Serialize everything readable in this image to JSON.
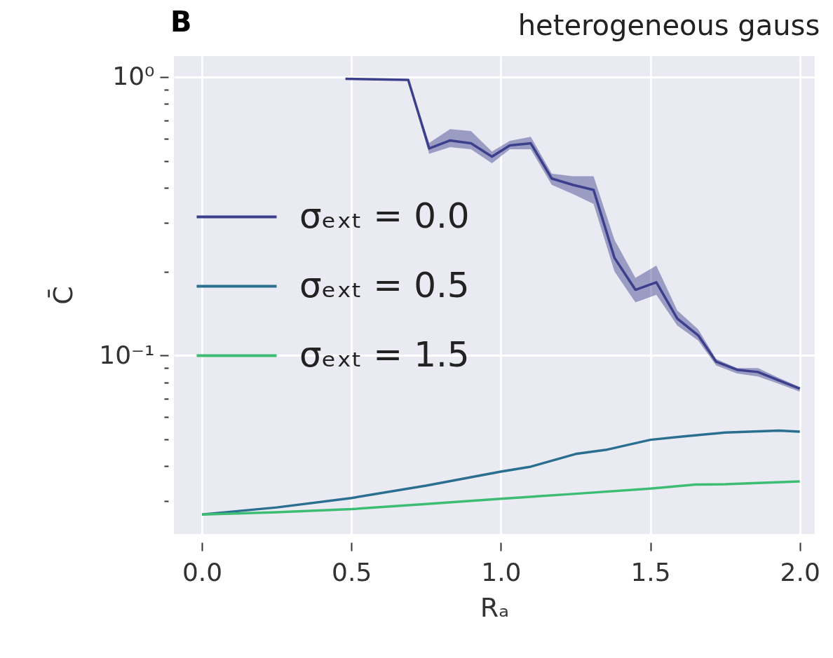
{
  "chart_data": {
    "type": "line",
    "title": "heterogeneous gauss",
    "annotations": [
      "B"
    ],
    "xlabel": "Rₐ",
    "ylabel": "C̄",
    "log": true,
    "grid": true,
    "legend": "left",
    "xlim": [
      -0.094,
      2.05
    ],
    "ylim": [
      0.0228,
      1.19
    ],
    "xticks": [
      {
        "value": 0,
        "label": "0.0"
      },
      {
        "value": 0.5,
        "label": "0.5"
      },
      {
        "value": 1,
        "label": "1.0"
      },
      {
        "value": 1.5,
        "label": "1.5"
      },
      {
        "value": 2,
        "label": "2.0"
      }
    ],
    "yticks": [
      {
        "value": 0.03,
        "label": null
      },
      {
        "value": 0.04,
        "label": null
      },
      {
        "value": 0.05,
        "label": null
      },
      {
        "value": 0.06,
        "label": null
      },
      {
        "value": 0.07,
        "label": null
      },
      {
        "value": 0.08,
        "label": null
      },
      {
        "value": 0.09,
        "label": null
      },
      {
        "value": 0.1,
        "label": "10⁻¹"
      },
      {
        "value": 0.2,
        "label": null
      },
      {
        "value": 0.3,
        "label": null
      },
      {
        "value": 0.4,
        "label": null
      },
      {
        "value": 0.5,
        "label": null
      },
      {
        "value": 0.6,
        "label": null
      },
      {
        "value": 0.7,
        "label": null
      },
      {
        "value": 0.8,
        "label": null
      },
      {
        "value": 0.9,
        "label": null
      },
      {
        "value": 1,
        "label": "10⁰"
      }
    ],
    "series": [
      {
        "name": "σₑₓₜ = 0.0",
        "color": "#3b3f8c",
        "x": [
          0.48,
          0.69,
          0.76,
          0.83,
          0.9,
          0.97,
          1.03,
          1.1,
          1.17,
          1.24,
          1.31,
          1.38,
          1.45,
          1.52,
          1.59,
          1.66,
          1.72,
          1.79,
          1.86,
          1.93,
          2.0
        ],
        "values": [
          0.985,
          0.977,
          0.554,
          0.592,
          0.578,
          0.518,
          0.568,
          0.578,
          0.432,
          0.41,
          0.393,
          0.224,
          0.172,
          0.183,
          0.1355,
          0.118,
          0.0949,
          0.0887,
          0.0871,
          0.0813,
          0.0759
        ],
        "lower": [
          0.98,
          0.97,
          0.53,
          0.56,
          0.55,
          0.49,
          0.55,
          0.55,
          0.41,
          0.38,
          0.35,
          0.2,
          0.155,
          0.165,
          0.128,
          0.113,
          0.092,
          0.086,
          0.084,
          0.079,
          0.074
        ],
        "upper": [
          0.99,
          0.98,
          0.58,
          0.65,
          0.64,
          0.54,
          0.59,
          0.61,
          0.45,
          0.44,
          0.44,
          0.26,
          0.19,
          0.21,
          0.145,
          0.124,
          0.097,
          0.09,
          0.09,
          0.083,
          0.077
        ]
      },
      {
        "name": "σₑₓₜ = 0.5",
        "color": "#2a6f8f",
        "x": [
          0,
          0.25,
          0.5,
          0.75,
          1.0,
          1.1,
          1.25,
          1.35,
          1.5,
          1.6,
          1.75,
          1.93,
          2.0
        ],
        "values": [
          0.0268,
          0.0284,
          0.0307,
          0.034,
          0.0382,
          0.0398,
          0.0442,
          0.0457,
          0.0497,
          0.051,
          0.0528,
          0.0536,
          0.0532
        ]
      },
      {
        "name": "σₑₓₜ = 1.5",
        "color": "#3dbd73",
        "x": [
          0,
          0.25,
          0.5,
          0.75,
          1.0,
          1.25,
          1.5,
          1.65,
          1.75,
          2.0
        ],
        "values": [
          0.0268,
          0.0273,
          0.028,
          0.0292,
          0.0305,
          0.0318,
          0.0332,
          0.0343,
          0.0344,
          0.0352
        ]
      }
    ]
  }
}
